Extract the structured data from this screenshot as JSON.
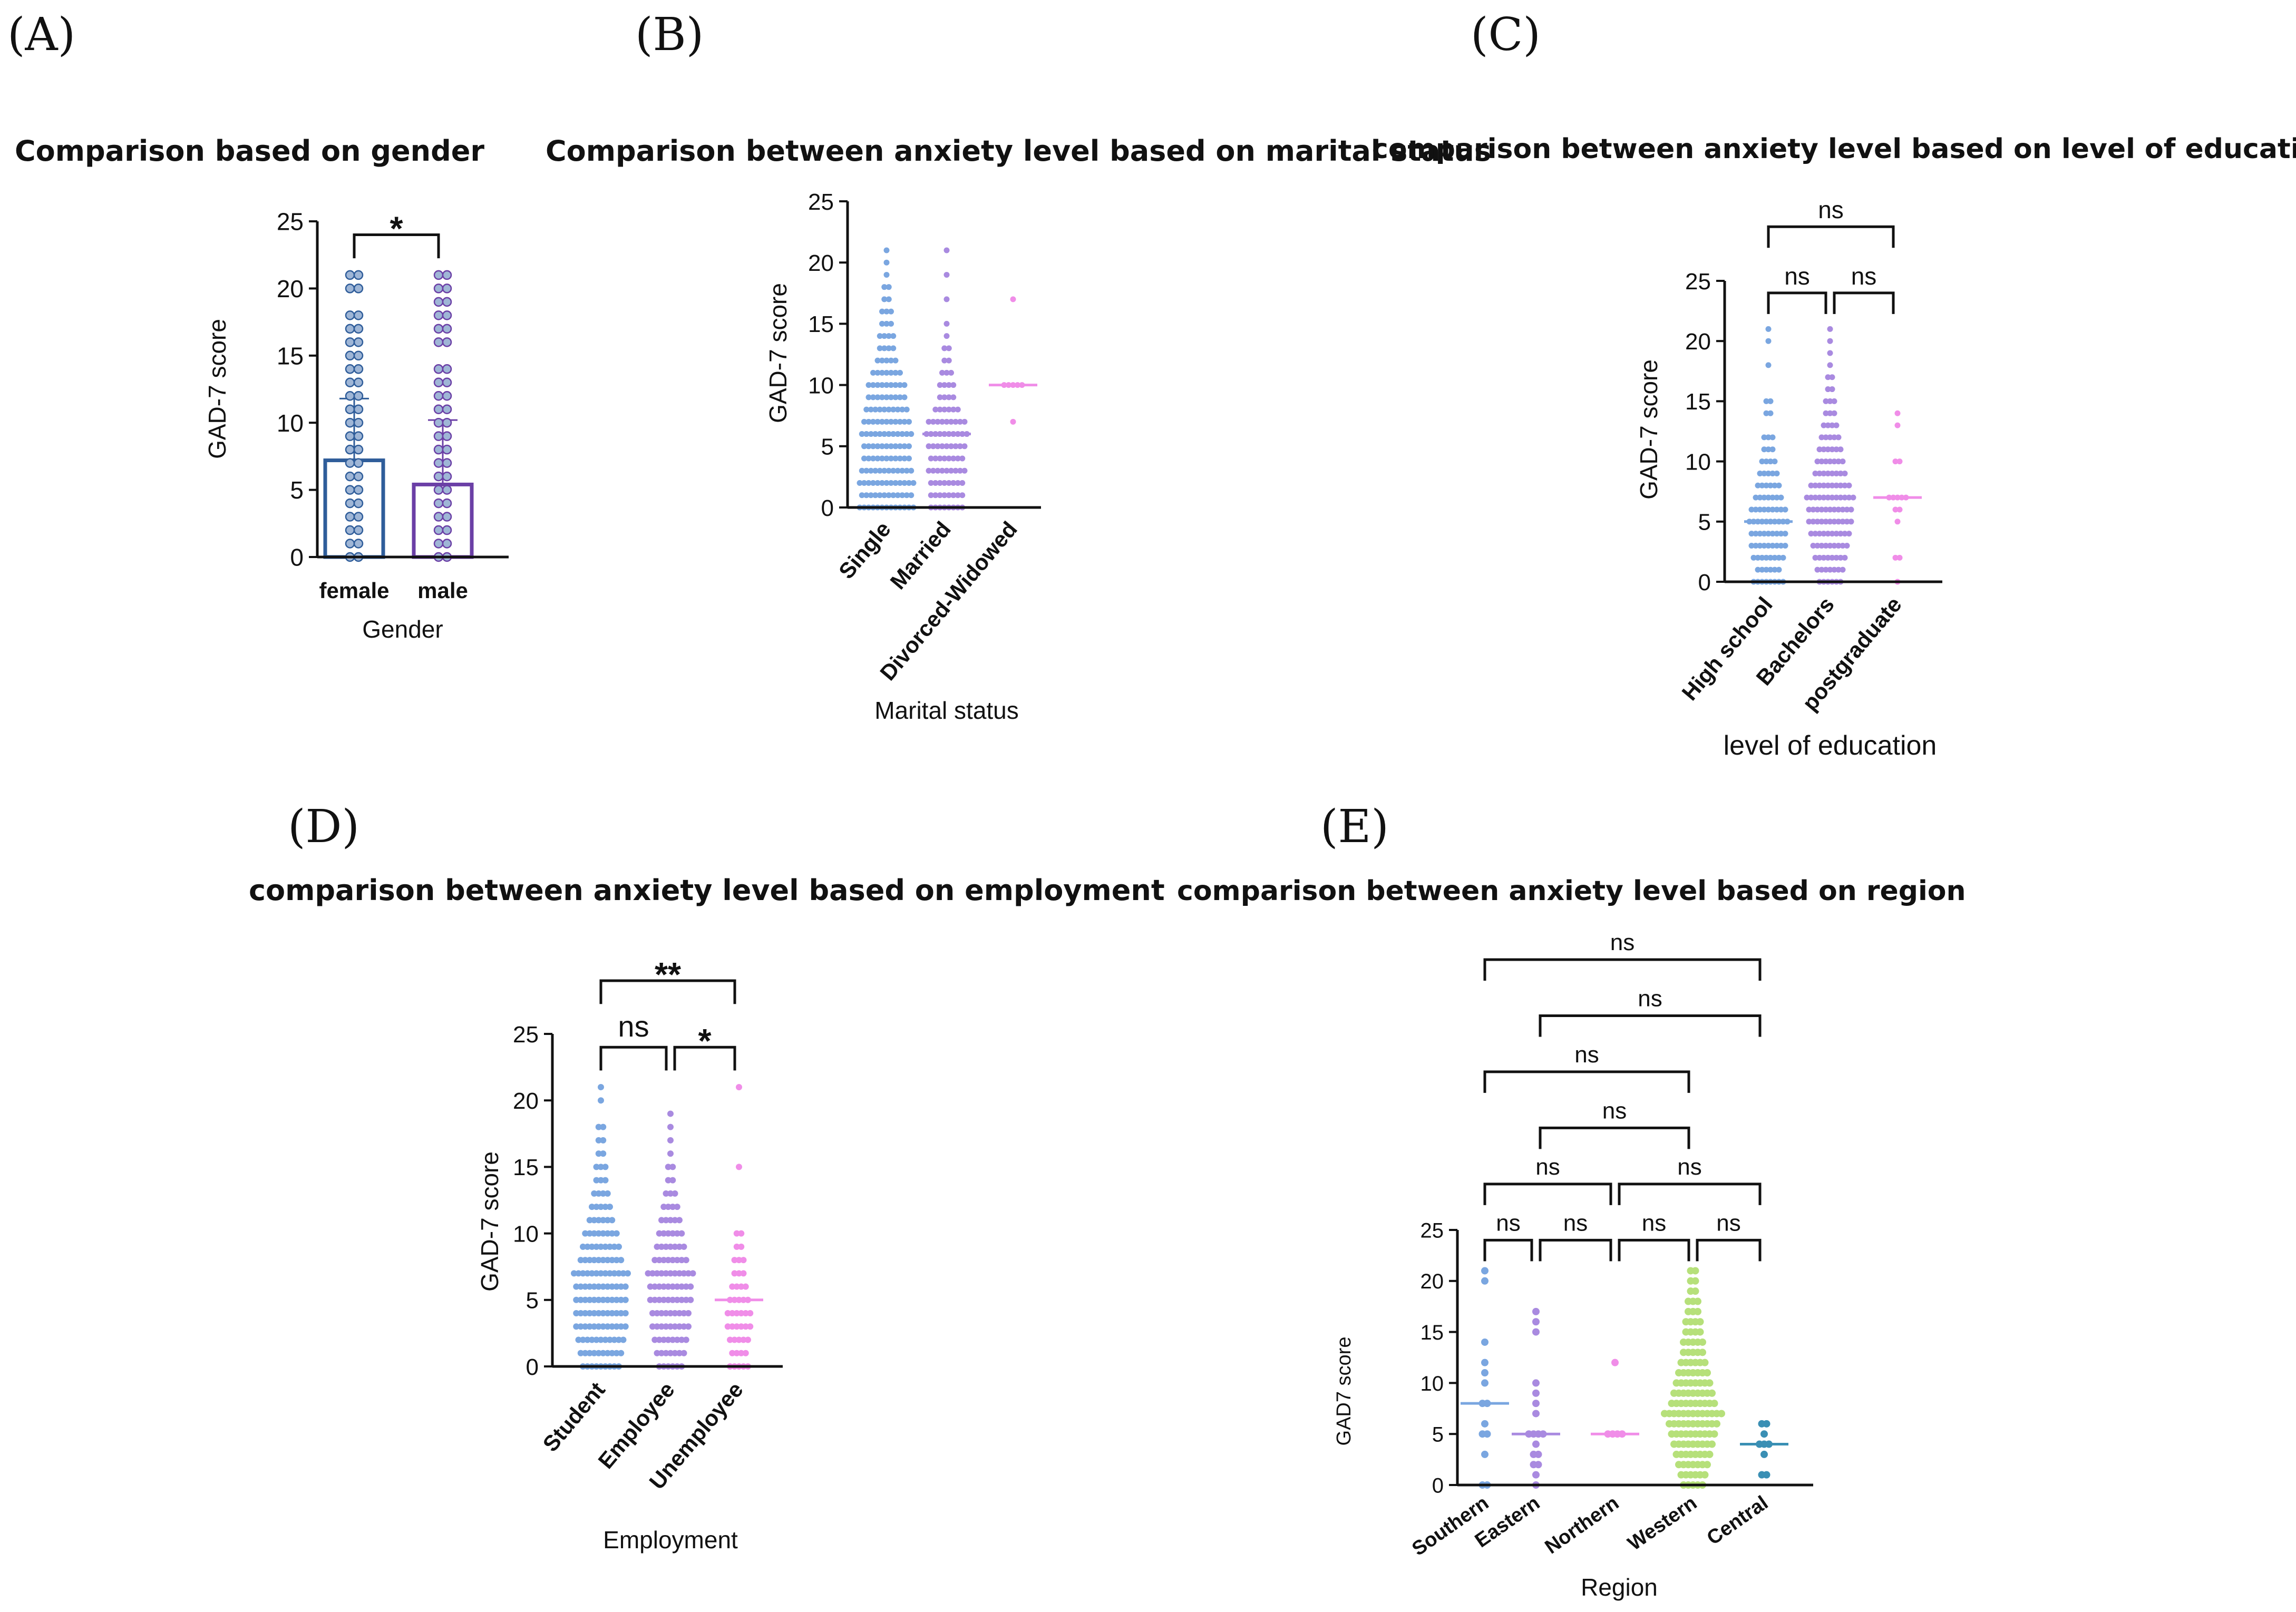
{
  "colors": {
    "blue": "#7aa6e0",
    "purple": "#a98ae0",
    "pink": "#f08de8",
    "green": "#b6e07a",
    "teal": "#3a8fb4",
    "female_bar": "#2f5d9a",
    "male_bar": "#6b3fa6",
    "axis": "#111111"
  },
  "chart_data": [
    {
      "panel": "(A)",
      "type": "bar",
      "title": "Comparison based on gender",
      "ylabel": "GAD-7 score",
      "xlabel": "Gender",
      "ylim": [
        0,
        25
      ],
      "yticks": [
        0,
        5,
        10,
        15,
        20,
        25
      ],
      "yticklabels": [
        "0",
        "5",
        "10",
        "15",
        "20",
        "25"
      ],
      "categories": [
        "female",
        "male"
      ],
      "values": [
        7.2,
        5.4
      ],
      "error_upper": [
        11.8,
        10.2
      ],
      "point_colors": [
        "female_bar",
        "male_bar"
      ],
      "points": [
        [
          0,
          1,
          2,
          3,
          4,
          5,
          6,
          7,
          8,
          9,
          10,
          11,
          12,
          13,
          14,
          15,
          16,
          17,
          18,
          20,
          21
        ],
        [
          0,
          1,
          2,
          3,
          4,
          5,
          6,
          7,
          8,
          9,
          10,
          11,
          12,
          13,
          14,
          16,
          17,
          18,
          19,
          20,
          21
        ]
      ],
      "comparisons": [
        {
          "from": 0,
          "to": 1,
          "y": 24,
          "label": "*"
        }
      ]
    },
    {
      "panel": "(B)",
      "type": "scatter",
      "title": "Comparison between anxiety level based on marital status",
      "ylabel": "GAD-7 score",
      "xlabel": "Marital status",
      "ylim": [
        0,
        25
      ],
      "yticks": [
        0,
        5,
        10,
        15,
        20,
        25
      ],
      "yticklabels": [
        "0",
        "5",
        "10",
        "15",
        "20",
        "25"
      ],
      "categories": [
        "Single",
        "Married",
        "Divorced-Widowed"
      ],
      "medians": [
        6,
        6,
        10
      ],
      "point_colors": [
        "blue",
        "purple",
        "pink"
      ],
      "points": [
        [
          [
            0,
            13
          ],
          [
            1,
            12
          ],
          [
            2,
            13
          ],
          [
            3,
            12
          ],
          [
            4,
            11
          ],
          [
            5,
            11
          ],
          [
            6,
            12
          ],
          [
            7,
            11
          ],
          [
            8,
            10
          ],
          [
            9,
            9
          ],
          [
            10,
            9
          ],
          [
            11,
            7
          ],
          [
            12,
            5
          ],
          [
            13,
            4
          ],
          [
            14,
            4
          ],
          [
            15,
            3
          ],
          [
            16,
            3
          ],
          [
            17,
            2
          ],
          [
            18,
            2
          ],
          [
            19,
            1
          ],
          [
            20,
            1
          ],
          [
            21,
            1
          ]
        ],
        [
          [
            0,
            8
          ],
          [
            1,
            8
          ],
          [
            2,
            8
          ],
          [
            3,
            9
          ],
          [
            4,
            8
          ],
          [
            5,
            9
          ],
          [
            6,
            10
          ],
          [
            7,
            9
          ],
          [
            8,
            6
          ],
          [
            9,
            4
          ],
          [
            10,
            4
          ],
          [
            11,
            3
          ],
          [
            12,
            2
          ],
          [
            13,
            2
          ],
          [
            14,
            1
          ],
          [
            15,
            1
          ],
          [
            17,
            1
          ],
          [
            19,
            1
          ],
          [
            21,
            1
          ]
        ],
        [
          [
            7,
            1
          ],
          [
            10,
            5
          ],
          [
            17,
            1
          ]
        ]
      ],
      "comparisons": []
    },
    {
      "panel": "(C)",
      "type": "scatter",
      "title": "comparison between anxiety level based on level of education",
      "ylabel": "GAD-7 score",
      "xlabel": "level of education",
      "ylim": [
        0,
        25
      ],
      "yticks": [
        0,
        5,
        10,
        15,
        20,
        25
      ],
      "yticklabels": [
        "0",
        "5",
        "10",
        "15",
        "20",
        "25"
      ],
      "categories": [
        "High school",
        "Bachelors",
        "postgraduate"
      ],
      "medians": [
        5,
        7,
        7
      ],
      "point_colors": [
        "blue",
        "purple",
        "pink"
      ],
      "points": [
        [
          [
            0,
            8
          ],
          [
            1,
            6
          ],
          [
            2,
            8
          ],
          [
            3,
            9
          ],
          [
            4,
            9
          ],
          [
            5,
            10
          ],
          [
            6,
            9
          ],
          [
            7,
            7
          ],
          [
            8,
            6
          ],
          [
            9,
            5
          ],
          [
            10,
            4
          ],
          [
            11,
            3
          ],
          [
            12,
            3
          ],
          [
            14,
            2
          ],
          [
            15,
            2
          ],
          [
            18,
            1
          ],
          [
            20,
            1
          ],
          [
            21,
            1
          ]
        ],
        [
          [
            0,
            6
          ],
          [
            1,
            7
          ],
          [
            2,
            8
          ],
          [
            3,
            9
          ],
          [
            4,
            10
          ],
          [
            5,
            11
          ],
          [
            6,
            11
          ],
          [
            7,
            12
          ],
          [
            8,
            10
          ],
          [
            9,
            8
          ],
          [
            10,
            7
          ],
          [
            11,
            6
          ],
          [
            12,
            5
          ],
          [
            13,
            4
          ],
          [
            14,
            3
          ],
          [
            15,
            3
          ],
          [
            16,
            2
          ],
          [
            17,
            2
          ],
          [
            18,
            1
          ],
          [
            19,
            1
          ],
          [
            20,
            1
          ],
          [
            21,
            1
          ]
        ],
        [
          [
            0,
            1
          ],
          [
            2,
            2
          ],
          [
            5,
            1
          ],
          [
            6,
            2
          ],
          [
            7,
            5
          ],
          [
            10,
            2
          ],
          [
            13,
            1
          ],
          [
            14,
            1
          ]
        ]
      ],
      "comparisons": [
        {
          "from": 0,
          "to": 1,
          "y": 24,
          "label": "ns"
        },
        {
          "from": 1,
          "to": 2,
          "y": 24,
          "label": "ns"
        },
        {
          "from": 0,
          "to": 2,
          "y": 29.5,
          "label": "ns"
        }
      ]
    },
    {
      "panel": "(D)",
      "type": "scatter",
      "title": "comparison between anxiety level based on employment",
      "ylabel": "GAD-7 score",
      "xlabel": "Employment",
      "ylim": [
        0,
        25
      ],
      "yticks": [
        0,
        5,
        10,
        15,
        20,
        25
      ],
      "yticklabels": [
        "0",
        "5",
        "10",
        "15",
        "20",
        "25"
      ],
      "categories": [
        "Student",
        "Employee",
        "Unemployee"
      ],
      "medians": [
        7,
        7,
        5
      ],
      "point_colors": [
        "blue",
        "purple",
        "pink"
      ],
      "points": [
        [
          [
            0,
            9
          ],
          [
            1,
            10
          ],
          [
            2,
            11
          ],
          [
            3,
            12
          ],
          [
            4,
            12
          ],
          [
            5,
            12
          ],
          [
            6,
            12
          ],
          [
            7,
            13
          ],
          [
            8,
            10
          ],
          [
            9,
            9
          ],
          [
            10,
            8
          ],
          [
            11,
            6
          ],
          [
            12,
            5
          ],
          [
            13,
            4
          ],
          [
            14,
            3
          ],
          [
            15,
            3
          ],
          [
            16,
            2
          ],
          [
            17,
            2
          ],
          [
            18,
            2
          ],
          [
            20,
            1
          ],
          [
            21,
            1
          ]
        ],
        [
          [
            0,
            6
          ],
          [
            1,
            7
          ],
          [
            2,
            8
          ],
          [
            3,
            9
          ],
          [
            4,
            9
          ],
          [
            5,
            10
          ],
          [
            6,
            10
          ],
          [
            7,
            11
          ],
          [
            8,
            8
          ],
          [
            9,
            7
          ],
          [
            10,
            6
          ],
          [
            11,
            5
          ],
          [
            12,
            4
          ],
          [
            13,
            3
          ],
          [
            14,
            2
          ],
          [
            15,
            2
          ],
          [
            16,
            1
          ],
          [
            17,
            1
          ],
          [
            18,
            1
          ],
          [
            19,
            1
          ]
        ],
        [
          [
            0,
            5
          ],
          [
            1,
            4
          ],
          [
            2,
            5
          ],
          [
            3,
            6
          ],
          [
            4,
            6
          ],
          [
            5,
            5
          ],
          [
            6,
            4
          ],
          [
            7,
            3
          ],
          [
            8,
            3
          ],
          [
            9,
            2
          ],
          [
            10,
            2
          ],
          [
            15,
            1
          ],
          [
            21,
            1
          ]
        ]
      ],
      "comparisons": [
        {
          "from": 0,
          "to": 1,
          "y": 24,
          "label": "ns"
        },
        {
          "from": 1,
          "to": 2,
          "y": 24,
          "label": "*"
        },
        {
          "from": 0,
          "to": 2,
          "y": 29,
          "label": "**"
        }
      ]
    },
    {
      "panel": "(E)",
      "type": "scatter",
      "title": "comparison between anxiety level based on region",
      "ylabel": "GAD7 score",
      "xlabel": "Region",
      "ylim": [
        0,
        25
      ],
      "yticks": [
        0,
        5,
        10,
        15,
        20,
        25
      ],
      "yticklabels": [
        "0",
        "5",
        "10",
        "15",
        "20",
        "25"
      ],
      "categories": [
        "Southern",
        "Eastern",
        "Northern",
        "Western",
        "Central"
      ],
      "medians": [
        8,
        5,
        5,
        7,
        4
      ],
      "point_colors": [
        "blue",
        "purple",
        "pink",
        "green",
        "teal"
      ],
      "points": [
        [
          [
            0,
            2
          ],
          [
            3,
            1
          ],
          [
            5,
            2
          ],
          [
            6,
            1
          ],
          [
            8,
            2
          ],
          [
            10,
            1
          ],
          [
            11,
            1
          ],
          [
            12,
            1
          ],
          [
            14,
            1
          ],
          [
            20,
            1
          ],
          [
            21,
            1
          ]
        ],
        [
          [
            0,
            1
          ],
          [
            1,
            1
          ],
          [
            2,
            2
          ],
          [
            3,
            2
          ],
          [
            4,
            1
          ],
          [
            5,
            4
          ],
          [
            7,
            1
          ],
          [
            8,
            1
          ],
          [
            9,
            1
          ],
          [
            10,
            1
          ],
          [
            15,
            1
          ],
          [
            16,
            1
          ],
          [
            17,
            1
          ]
        ],
        [
          [
            5,
            4
          ],
          [
            12,
            1
          ]
        ],
        [
          [
            0,
            5
          ],
          [
            1,
            6
          ],
          [
            2,
            7
          ],
          [
            3,
            8
          ],
          [
            4,
            9
          ],
          [
            5,
            10
          ],
          [
            6,
            11
          ],
          [
            7,
            13
          ],
          [
            8,
            10
          ],
          [
            9,
            9
          ],
          [
            10,
            8
          ],
          [
            11,
            7
          ],
          [
            12,
            6
          ],
          [
            13,
            5
          ],
          [
            14,
            5
          ],
          [
            15,
            4
          ],
          [
            16,
            4
          ],
          [
            17,
            3
          ],
          [
            18,
            3
          ],
          [
            19,
            2
          ],
          [
            20,
            2
          ],
          [
            21,
            2
          ]
        ],
        [
          [
            1,
            2
          ],
          [
            3,
            1
          ],
          [
            4,
            3
          ],
          [
            5,
            1
          ],
          [
            6,
            2
          ]
        ]
      ],
      "comparisons": [
        {
          "from": 0,
          "to": 1,
          "y": 24,
          "label": "ns"
        },
        {
          "from": 1,
          "to": 2,
          "y": 24,
          "label": "ns"
        },
        {
          "from": 2,
          "to": 3,
          "y": 24,
          "label": "ns"
        },
        {
          "from": 3,
          "to": 4,
          "y": 24,
          "label": "ns"
        },
        {
          "from": 0,
          "to": 2,
          "y": 29.5,
          "label": "ns"
        },
        {
          "from": 2,
          "to": 4,
          "y": 29.5,
          "label": "ns"
        },
        {
          "from": 1,
          "to": 3,
          "y": 35,
          "label": "ns"
        },
        {
          "from": 0,
          "to": 3,
          "y": 40.5,
          "label": "ns"
        },
        {
          "from": 1,
          "to": 4,
          "y": 46,
          "label": "ns"
        },
        {
          "from": 0,
          "to": 4,
          "y": 51.5,
          "label": "ns"
        }
      ]
    }
  ]
}
